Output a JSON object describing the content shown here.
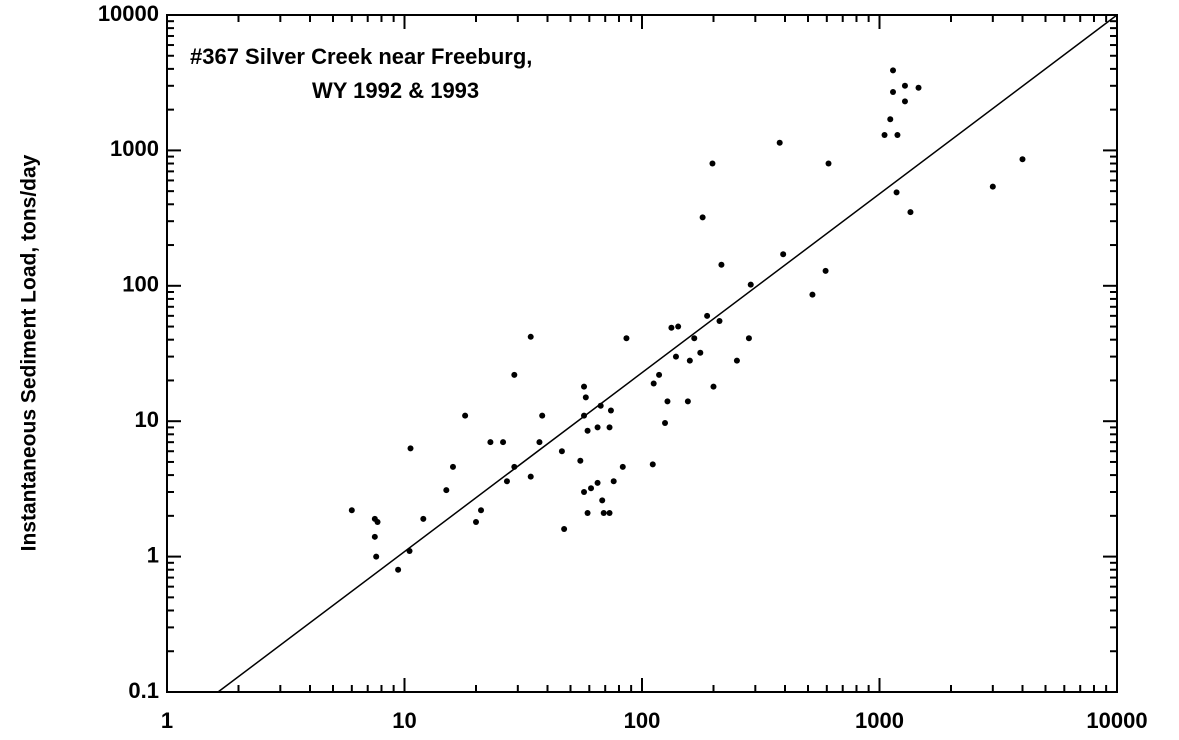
{
  "chart_data": {
    "type": "scatter",
    "title": "#367 Silver Creek near Freeburg,",
    "subtitle": "WY 1992 & 1993",
    "ylabel": "Instantaneous Sediment Load, tons/day",
    "xscale": "log",
    "yscale": "log",
    "xlim": [
      1,
      10000
    ],
    "ylim": [
      0.1,
      10000
    ],
    "xticks": [
      1,
      10,
      100,
      1000,
      10000
    ],
    "yticks": [
      0.1,
      1,
      10,
      100,
      1000,
      10000
    ],
    "color": "#000000",
    "x": [
      6,
      7.5,
      7.7,
      7.5,
      7.6,
      9.4,
      10.5,
      10.6,
      12,
      15,
      16,
      18,
      20,
      21,
      23,
      26,
      27,
      29,
      29,
      34,
      34,
      37,
      38,
      46,
      47,
      55,
      57,
      57,
      58,
      59,
      57,
      59,
      61,
      65,
      65,
      67,
      68,
      69,
      73,
      73,
      74,
      76,
      83,
      86,
      111,
      112,
      118,
      125,
      128,
      133,
      142,
      139,
      156,
      159,
      166,
      176,
      180,
      188,
      198,
      200,
      212,
      216,
      251,
      282,
      287,
      380,
      393,
      522,
      593,
      610,
      1050,
      1110,
      1140,
      1140,
      1190,
      1180,
      1280,
      1280,
      1460,
      1350,
      3000,
      4000
    ],
    "y": [
      2.2,
      1.9,
      1.8,
      1.4,
      1.0,
      0.8,
      1.1,
      6.3,
      1.9,
      3.1,
      4.6,
      11,
      1.8,
      2.2,
      7,
      7,
      3.6,
      4.6,
      22,
      3.9,
      42,
      7,
      11,
      6,
      1.6,
      5.1,
      18,
      11,
      15,
      8.5,
      3,
      2.1,
      3.2,
      3.5,
      9,
      13,
      2.6,
      2.1,
      2.1,
      9,
      12,
      3.6,
      4.6,
      41,
      4.8,
      19,
      22,
      9.7,
      14,
      49,
      50,
      30,
      14,
      28,
      41,
      32,
      320,
      60,
      800,
      18,
      55,
      143,
      28,
      41,
      102,
      1140,
      171,
      86,
      129,
      800,
      1300,
      1700,
      3900,
      2700,
      1300,
      490,
      2300,
      3000,
      2900,
      350,
      540,
      860
    ],
    "fit_line": {
      "x": [
        1.64,
        10000
      ],
      "y": [
        0.1,
        10000
      ]
    }
  }
}
